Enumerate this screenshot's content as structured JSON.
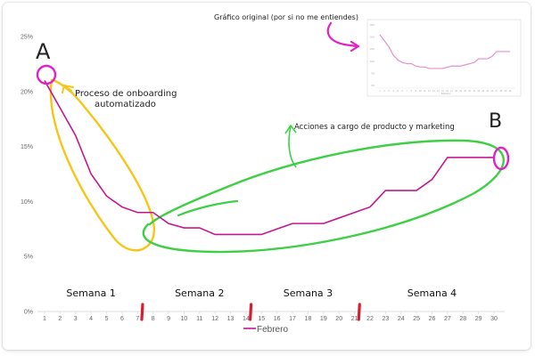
{
  "chart_data": {
    "type": "line",
    "x": [
      1,
      2,
      3,
      4,
      5,
      6,
      7,
      8,
      9,
      10,
      11,
      12,
      13,
      14,
      15,
      16,
      17,
      18,
      19,
      20,
      21,
      22,
      23,
      24,
      25,
      26,
      27,
      28,
      29,
      30
    ],
    "series": [
      {
        "name": "Febrero",
        "values": [
          21,
          18.5,
          16,
          12.5,
          10.5,
          9.5,
          9,
          9,
          8,
          7.6,
          7.6,
          7,
          7,
          7,
          7,
          7.5,
          8,
          8,
          8,
          8.5,
          9,
          9.5,
          11,
          11,
          11,
          12,
          14,
          14,
          14,
          14
        ]
      }
    ],
    "y_ticks": [
      "0%",
      "5%",
      "10%",
      "15%",
      "20%",
      "25%"
    ],
    "ylim": [
      0,
      25
    ],
    "xlim": [
      1,
      30
    ],
    "color": "#c2188f",
    "legend": "bottom",
    "grid": false
  },
  "inset": {
    "title": "Gráfico original (por si no me entiendes)",
    "values": [
      21,
      18.5,
      16,
      12.5,
      10.5,
      9.5,
      9,
      9,
      8,
      7.6,
      7.6,
      7,
      7,
      7,
      7,
      7.5,
      8,
      8,
      8,
      8.5,
      9,
      9.5,
      11,
      11,
      11,
      12,
      14,
      14,
      14,
      14
    ],
    "color": "#e58fcf"
  },
  "annotations": {
    "label_a": "A",
    "label_b": "B",
    "onboarding_line1": "Proceso de onboarding",
    "onboarding_line2": "automatizado",
    "actions": "Acciones a cargo de producto y marketing",
    "weeks": [
      "Semana 1",
      "Semana 2",
      "Semana 3",
      "Semana 4"
    ],
    "week_marker_days": [
      7,
      14,
      21
    ],
    "yellow": "#f5c518",
    "green": "#3fcf45",
    "magenta": "#e020c8",
    "red": "#d91c2e"
  }
}
